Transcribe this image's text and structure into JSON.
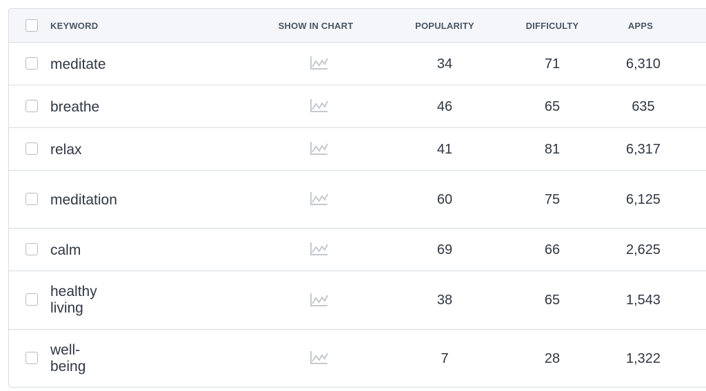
{
  "headers": {
    "keyword": "KEYWORD",
    "show_in_chart": "SHOW IN CHART",
    "popularity": "POPULARITY",
    "difficulty": "DIFFICULTY",
    "apps": "APPS"
  },
  "icon": "line-chart-icon",
  "colors": {
    "header_bg": "#f4f6f9",
    "border": "#d6dbe1",
    "icon": "#c4c9cf"
  },
  "rows": [
    {
      "keyword": "meditate",
      "popularity": "34",
      "difficulty": "71",
      "apps": "6,310"
    },
    {
      "keyword": "breathe",
      "popularity": "46",
      "difficulty": "65",
      "apps": "635"
    },
    {
      "keyword": "relax",
      "popularity": "41",
      "difficulty": "81",
      "apps": "6,317"
    },
    {
      "keyword": "meditation",
      "popularity": "60",
      "difficulty": "75",
      "apps": "6,125"
    },
    {
      "keyword": "calm",
      "popularity": "69",
      "difficulty": "66",
      "apps": "2,625"
    },
    {
      "keyword": "healthy living",
      "popularity": "38",
      "difficulty": "65",
      "apps": "1,543"
    },
    {
      "keyword": "well-being",
      "popularity": "7",
      "difficulty": "28",
      "apps": "1,322"
    }
  ]
}
